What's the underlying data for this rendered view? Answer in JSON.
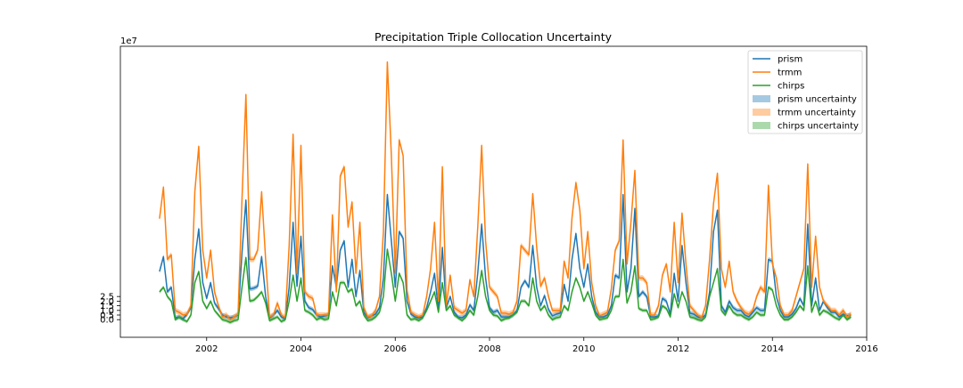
{
  "chart_data": {
    "type": "line",
    "title": "Precipitation Triple Collocation Uncertainty",
    "xlabel": "",
    "ylabel": "",
    "y_offset_text": "1e7",
    "xlim": [
      2000.17,
      2016.0
    ],
    "ylim": [
      -1.9,
      29.5
    ],
    "y_unit_multiplier": 10000000,
    "x_ticks": [
      2002,
      2004,
      2006,
      2008,
      2010,
      2012,
      2014,
      2016
    ],
    "x_tick_labels": [
      "2002",
      "2004",
      "2006",
      "2008",
      "2010",
      "2012",
      "2014",
      "2016"
    ],
    "y_ticks": [
      0.0,
      0.5,
      1.0,
      1.5,
      2.0,
      2.5
    ],
    "y_tick_labels": [
      "0.0",
      "0.5",
      "1.0",
      "1.5",
      "2.0",
      "2.5"
    ],
    "legend_position": "top-right",
    "grid": false,
    "x_start": 2001.0,
    "x_step": 0.0833333,
    "series": [
      {
        "name": "prism",
        "color": "#1f77b4",
        "uncertainty_label": "prism uncertainty",
        "uncertainty_half_width": 0.25,
        "values": [
          5.2,
          6.8,
          3.0,
          3.5,
          0.2,
          0.3,
          0.1,
          0.6,
          1.3,
          6.5,
          9.8,
          4.0,
          2.3,
          4.0,
          1.8,
          1.2,
          0.5,
          0.3,
          0.2,
          0.3,
          0.5,
          7.2,
          12.9,
          3.3,
          3.4,
          3.6,
          6.8,
          2.5,
          0.2,
          0.5,
          1.0,
          0.3,
          0.1,
          3.5,
          10.5,
          3.6,
          9.0,
          2.0,
          1.3,
          1.1,
          0.5,
          0.3,
          0.4,
          0.5,
          5.8,
          3.5,
          7.5,
          8.5,
          3.5,
          6.5,
          2.5,
          5.3,
          0.8,
          0.2,
          0.4,
          0.6,
          1.3,
          4.5,
          13.5,
          8.5,
          3.5,
          9.5,
          8.8,
          2.0,
          0.6,
          0.3,
          0.2,
          0.3,
          1.3,
          3.0,
          5.0,
          1.0,
          7.8,
          1.3,
          2.5,
          0.8,
          0.3,
          0.2,
          0.5,
          1.6,
          1.0,
          5.0,
          10.3,
          4.5,
          1.3,
          0.8,
          1.0,
          0.3,
          0.3,
          0.3,
          0.5,
          1.0,
          3.5,
          4.2,
          3.5,
          8.0,
          3.5,
          1.5,
          2.6,
          1.1,
          0.4,
          0.6,
          0.7,
          3.8,
          2.0,
          6.5,
          9.3,
          5.5,
          3.5,
          6.0,
          2.5,
          0.8,
          0.3,
          0.3,
          0.5,
          1.5,
          4.8,
          4.5,
          13.5,
          3.0,
          5.5,
          12.0,
          2.5,
          3.0,
          2.5,
          0.3,
          0.3,
          0.4,
          2.3,
          2.0,
          0.6,
          5.0,
          2.0,
          8.0,
          4.0,
          0.7,
          0.6,
          0.3,
          0.2,
          0.5,
          3.0,
          9.5,
          11.8,
          1.5,
          0.8,
          2.0,
          1.3,
          1.0,
          1.0,
          0.5,
          0.3,
          0.8,
          1.3,
          1.0,
          1.0,
          6.5,
          6.3,
          2.5,
          1.0,
          0.3,
          0.3,
          0.6,
          1.2,
          2.3,
          1.5,
          10.3,
          1.5,
          4.5,
          1.0,
          2.0,
          1.3,
          0.8,
          0.8,
          0.3,
          0.6,
          0.4,
          0.5
        ]
      },
      {
        "name": "trmm",
        "color": "#ff7f0e",
        "uncertainty_label": "trmm uncertainty",
        "uncertainty_half_width": 0.3,
        "values": [
          10.9,
          14.3,
          6.5,
          7.0,
          1.0,
          0.8,
          0.5,
          0.6,
          1.5,
          13.8,
          18.7,
          7.5,
          4.5,
          7.5,
          3.0,
          1.5,
          0.3,
          0.5,
          0.0,
          0.3,
          0.6,
          13.0,
          24.3,
          6.5,
          6.5,
          7.5,
          13.8,
          6.5,
          0.3,
          0.5,
          1.8,
          0.5,
          0.2,
          8.0,
          20.0,
          5.0,
          18.8,
          3.0,
          2.5,
          2.3,
          0.5,
          0.5,
          0.5,
          0.5,
          11.3,
          3.0,
          15.5,
          16.5,
          10.0,
          12.7,
          5.0,
          10.5,
          1.3,
          0.3,
          0.4,
          1.0,
          2.5,
          9.5,
          27.8,
          17.7,
          5.0,
          19.4,
          17.7,
          3.2,
          0.8,
          0.5,
          0.3,
          0.5,
          2.5,
          5.5,
          10.5,
          2.0,
          16.5,
          1.5,
          4.8,
          1.3,
          1.0,
          0.7,
          1.0,
          4.3,
          2.5,
          10.0,
          18.8,
          8.5,
          3.5,
          3.0,
          2.5,
          0.7,
          0.7,
          0.6,
          0.8,
          2.0,
          8.0,
          7.5,
          7.0,
          13.6,
          7.8,
          3.6,
          4.5,
          2.5,
          1.0,
          1.0,
          1.0,
          6.3,
          4.5,
          11.0,
          14.8,
          11.8,
          5.5,
          9.5,
          4.0,
          1.5,
          0.4,
          0.6,
          0.8,
          3.3,
          7.5,
          8.5,
          19.4,
          6.0,
          10.5,
          16.1,
          4.5,
          4.5,
          4.0,
          0.5,
          0.5,
          1.5,
          4.8,
          6.0,
          3.0,
          10.5,
          4.0,
          11.5,
          6.0,
          1.5,
          1.0,
          0.5,
          0.2,
          1.5,
          6.5,
          12.5,
          15.8,
          5.5,
          3.5,
          6.3,
          3.0,
          2.0,
          1.3,
          0.8,
          0.6,
          1.0,
          2.5,
          3.5,
          3.0,
          14.5,
          6.0,
          4.5,
          1.5,
          0.5,
          0.5,
          1.0,
          2.5,
          4.0,
          5.5,
          16.8,
          3.5,
          9.0,
          3.5,
          2.0,
          1.5,
          1.0,
          1.0,
          0.5,
          1.0,
          0.3,
          0.6
        ]
      },
      {
        "name": "chirps",
        "color": "#2ca02c",
        "uncertainty_label": "chirps uncertainty",
        "uncertainty_half_width": 0.2,
        "values": [
          3.0,
          3.5,
          2.5,
          2.0,
          0.0,
          0.3,
          0.0,
          -0.2,
          0.5,
          4.0,
          5.2,
          2.0,
          1.2,
          2.0,
          1.0,
          0.5,
          0.0,
          -0.1,
          -0.3,
          -0.1,
          0.0,
          3.5,
          6.7,
          2.0,
          2.1,
          2.5,
          3.0,
          1.8,
          -0.1,
          0.1,
          0.3,
          -0.2,
          0.0,
          2.0,
          4.8,
          2.0,
          4.5,
          1.0,
          0.8,
          0.5,
          0.0,
          0.2,
          0.0,
          0.1,
          3.0,
          1.5,
          4.0,
          4.0,
          3.0,
          3.3,
          1.5,
          2.0,
          0.5,
          -0.1,
          0.0,
          0.3,
          0.8,
          2.5,
          7.6,
          5.0,
          2.0,
          5.0,
          4.0,
          0.5,
          0.0,
          0.1,
          -0.1,
          0.2,
          1.0,
          2.0,
          3.0,
          0.8,
          4.0,
          1.0,
          1.5,
          0.5,
          0.2,
          -0.1,
          0.3,
          1.0,
          0.5,
          2.5,
          5.3,
          2.5,
          1.0,
          0.5,
          0.4,
          -0.1,
          0.1,
          0.2,
          0.5,
          0.8,
          2.0,
          2.0,
          1.5,
          4.5,
          2.0,
          1.0,
          1.5,
          0.5,
          0.0,
          0.2,
          0.3,
          1.5,
          1.0,
          3.0,
          4.5,
          3.5,
          2.0,
          3.0,
          1.8,
          0.5,
          0.0,
          0.1,
          0.2,
          1.0,
          2.5,
          2.5,
          6.5,
          1.8,
          3.0,
          5.8,
          1.2,
          1.0,
          1.0,
          0.0,
          0.1,
          0.3,
          1.5,
          1.2,
          0.3,
          2.8,
          1.3,
          3.0,
          2.0,
          0.3,
          0.2,
          0.0,
          -0.1,
          0.3,
          2.5,
          4.0,
          5.5,
          1.0,
          0.5,
          1.5,
          0.8,
          0.5,
          0.5,
          0.2,
          0.0,
          0.3,
          0.8,
          0.5,
          0.5,
          3.5,
          3.2,
          1.5,
          0.5,
          0.0,
          0.0,
          0.3,
          0.8,
          1.5,
          1.0,
          5.8,
          0.8,
          2.0,
          0.5,
          1.0,
          0.8,
          0.5,
          0.2,
          0.0,
          0.5,
          0.0,
          0.3
        ]
      }
    ]
  }
}
